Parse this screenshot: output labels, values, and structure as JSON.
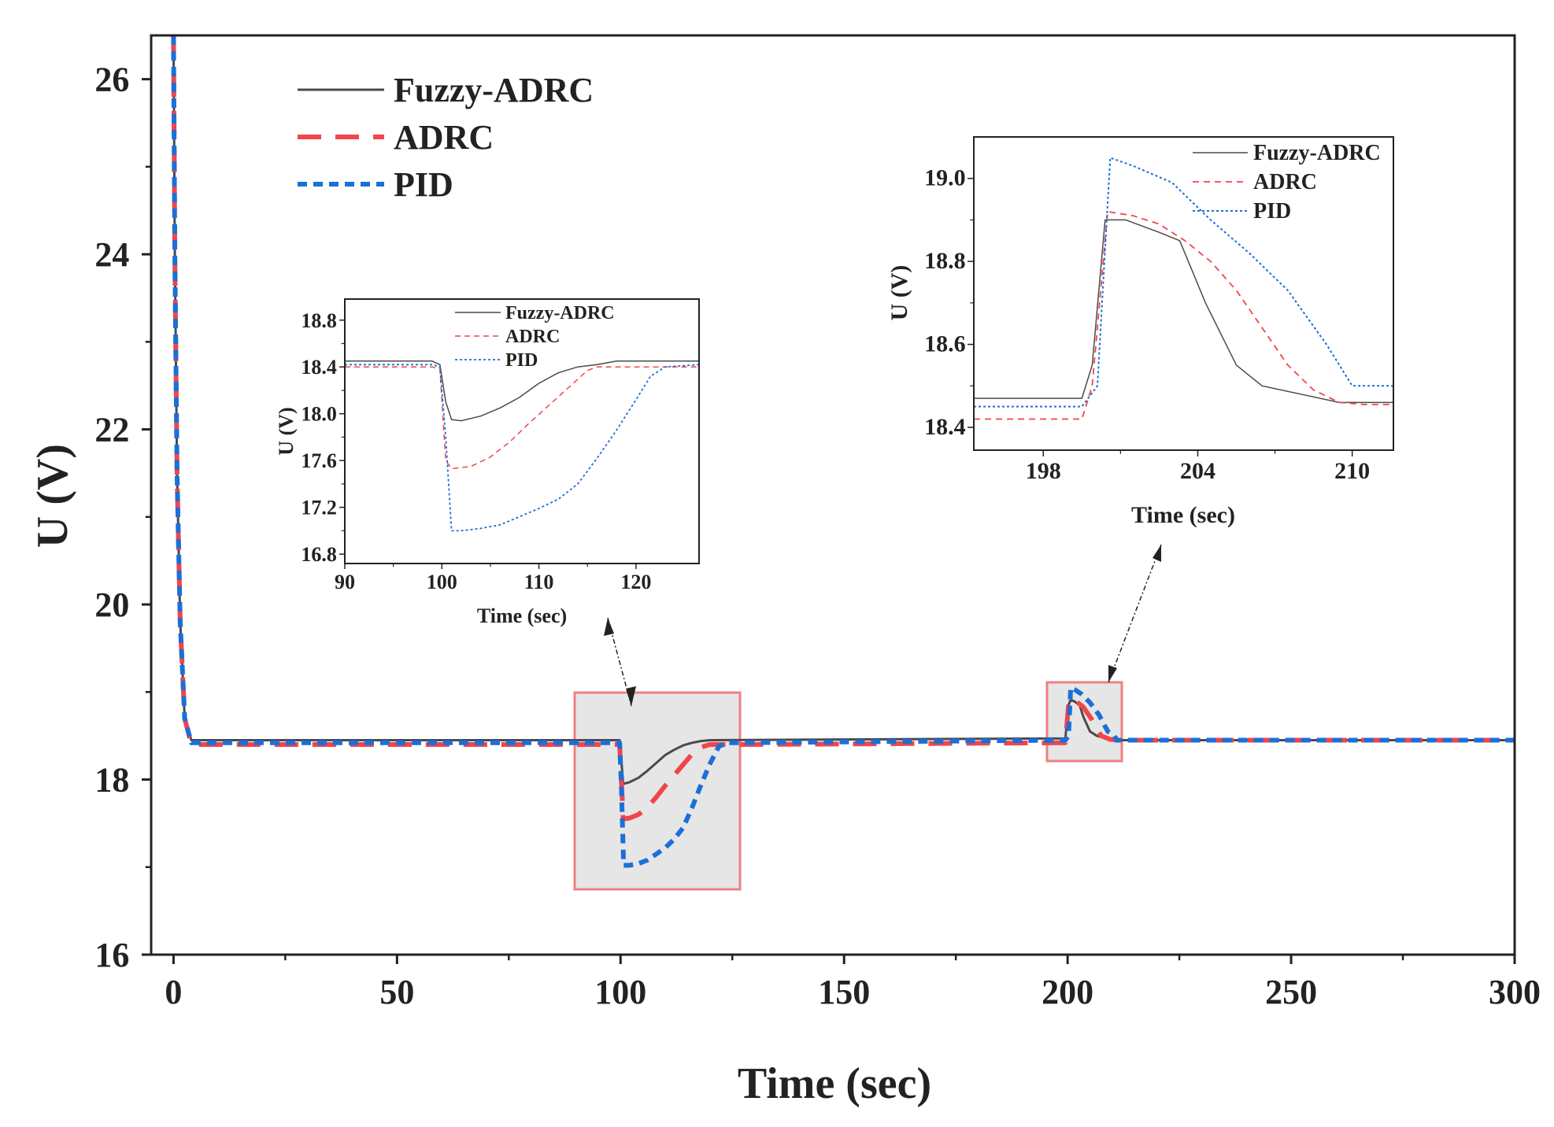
{
  "colors": {
    "fuzzy": "#4a4a4a",
    "adrc": "#f0454a",
    "pid": "#1c6fd8",
    "zoom_box_edge": "#f08080",
    "zoom_box_fill": "#e6e6e6",
    "axis": "#222222"
  },
  "chart_data": [
    {
      "id": "main",
      "type": "line",
      "xlabel": "Time (sec)",
      "ylabel": "U (V)",
      "xlim": [
        -5,
        300
      ],
      "ylim": [
        16,
        26.5
      ],
      "xticks": [
        0,
        50,
        100,
        150,
        200,
        250,
        300
      ],
      "xtick_labels": [
        "0",
        "50",
        "100",
        "150",
        "200",
        "250",
        "300"
      ],
      "yticks": [
        16,
        18,
        20,
        22,
        24,
        26
      ],
      "ytick_labels": [
        "16",
        "18",
        "20",
        "22",
        "24",
        "26"
      ],
      "legend": {
        "position": "top-left",
        "entries": [
          "Fuzzy-ADRC",
          "ADRC",
          "PID"
        ]
      },
      "series": [
        {
          "name": "Fuzzy-ADRC",
          "style": "solid",
          "x": [
            0,
            0.3,
            0.8,
            1.5,
            2.5,
            4,
            99.8,
            100.6,
            102,
            104,
            106,
            108,
            110,
            112,
            114,
            116,
            118,
            120,
            199.5,
            200.2,
            200.6,
            201.3,
            202.7,
            203.5,
            205,
            206.5,
            208,
            209.5,
            210.5,
            212,
            300
          ],
          "y": [
            26.5,
            24,
            21.5,
            19.8,
            18.7,
            18.45,
            18.45,
            17.95,
            17.97,
            18.02,
            18.1,
            18.19,
            18.28,
            18.34,
            18.39,
            18.42,
            18.44,
            18.45,
            18.47,
            18.85,
            18.9,
            18.9,
            18.85,
            18.72,
            18.55,
            18.5,
            18.48,
            18.46,
            18.46,
            18.45,
            18.45
          ]
        },
        {
          "name": "ADRC",
          "style": "dashed",
          "x": [
            0,
            0.3,
            0.8,
            1.5,
            2.5,
            4,
            99.8,
            100.6,
            102,
            104,
            106,
            108,
            110,
            112,
            114,
            116,
            118,
            120,
            122,
            124,
            126,
            199.5,
            200.2,
            200.6,
            201.5,
            203.5,
            205.5,
            207.5,
            209.5,
            211,
            300
          ],
          "y": [
            26.5,
            24,
            21.5,
            19.8,
            18.7,
            18.4,
            18.4,
            17.55,
            17.56,
            17.6,
            17.68,
            17.8,
            17.93,
            18.05,
            18.17,
            18.29,
            18.37,
            18.4,
            18.4,
            18.4,
            18.4,
            18.42,
            18.85,
            18.92,
            18.91,
            18.83,
            18.68,
            18.5,
            18.46,
            18.45,
            18.45
          ]
        },
        {
          "name": "PID",
          "style": "dotted",
          "x": [
            0,
            0.3,
            0.8,
            1.5,
            2.5,
            4,
            99.8,
            100.2,
            100.7,
            102,
            104,
            106,
            108,
            110,
            112,
            114,
            116,
            118,
            120,
            122,
            124,
            126,
            199.5,
            200.2,
            200.7,
            201.5,
            203,
            205,
            207,
            209,
            210.5,
            211,
            300
          ],
          "y": [
            26.5,
            24,
            21.5,
            19.8,
            18.7,
            18.42,
            18.42,
            17.9,
            17.02,
            17.02,
            17.04,
            17.08,
            17.15,
            17.22,
            17.32,
            17.45,
            17.68,
            17.94,
            18.18,
            18.38,
            18.42,
            18.42,
            18.45,
            18.5,
            19.05,
            19.03,
            18.98,
            18.88,
            18.74,
            18.55,
            18.5,
            18.45,
            18.45
          ]
        }
      ]
    },
    {
      "id": "inset1",
      "type": "line",
      "xlabel": "Time (sec)",
      "ylabel": "U (V)",
      "xlim": [
        90,
        126.5
      ],
      "ylim": [
        16.72,
        18.98
      ],
      "xticks": [
        90,
        100,
        110,
        120
      ],
      "xtick_labels": [
        "90",
        "100",
        "110",
        "120"
      ],
      "yticks": [
        16.8,
        17.2,
        17.6,
        18.0,
        18.4,
        18.8
      ],
      "ytick_labels": [
        "16.8",
        "17.2",
        "17.6",
        "18.0",
        "18.4",
        "18.8"
      ],
      "legend": {
        "position": "top-right",
        "entries": [
          "Fuzzy-ADRC",
          "ADRC",
          "PID"
        ]
      },
      "series": [
        {
          "name": "Fuzzy-ADRC",
          "style": "solid",
          "x": [
            90,
            99,
            99.8,
            100.4,
            101,
            102,
            104,
            106,
            108,
            110,
            112,
            114,
            116,
            118,
            126.5
          ],
          "y": [
            18.45,
            18.45,
            18.42,
            18.1,
            17.95,
            17.94,
            17.98,
            18.05,
            18.14,
            18.26,
            18.35,
            18.4,
            18.42,
            18.45,
            18.45
          ]
        },
        {
          "name": "ADRC",
          "style": "dashed",
          "x": [
            90,
            99,
            99.8,
            100.4,
            101,
            103,
            105,
            107,
            109,
            111,
            113,
            115,
            116,
            120,
            126.5
          ],
          "y": [
            18.4,
            18.4,
            18.38,
            17.6,
            17.53,
            17.55,
            17.63,
            17.76,
            17.92,
            18.07,
            18.22,
            18.37,
            18.4,
            18.4,
            18.4
          ]
        },
        {
          "name": "PID",
          "style": "dotted",
          "x": [
            90,
            99,
            99.8,
            100.4,
            101,
            102,
            104,
            106,
            108,
            110,
            112,
            114,
            116,
            118,
            120,
            121.5,
            123,
            126.5
          ],
          "y": [
            18.42,
            18.42,
            18.4,
            17.8,
            17.0,
            17.0,
            17.02,
            17.05,
            17.12,
            17.19,
            17.27,
            17.4,
            17.62,
            17.86,
            18.12,
            18.32,
            18.4,
            18.42
          ]
        }
      ]
    },
    {
      "id": "inset2",
      "type": "line",
      "xlabel": "Time (sec)",
      "ylabel": "U (V)",
      "xlim": [
        195.3,
        211.6
      ],
      "ylim": [
        18.345,
        19.1
      ],
      "xticks": [
        198,
        204,
        210
      ],
      "xtick_labels": [
        "198",
        "204",
        "210"
      ],
      "yticks": [
        18.4,
        18.6,
        18.8,
        19.0
      ],
      "ytick_labels": [
        "18.4",
        "18.6",
        "18.8",
        "19.0"
      ],
      "legend": {
        "position": "top-right",
        "entries": [
          "Fuzzy-ADRC",
          "ADRC",
          "PID"
        ]
      },
      "series": [
        {
          "name": "Fuzzy-ADRC",
          "style": "solid",
          "x": [
            195.3,
            199.5,
            199.9,
            200.4,
            201.2,
            202.5,
            203.3,
            204.3,
            205.5,
            206.5,
            208,
            209.5,
            210.5,
            211.6
          ],
          "y": [
            18.47,
            18.47,
            18.55,
            18.9,
            18.9,
            18.87,
            18.85,
            18.7,
            18.55,
            18.5,
            18.48,
            18.46,
            18.46,
            18.46
          ]
        },
        {
          "name": "ADRC",
          "style": "dashed",
          "x": [
            195.3,
            199.5,
            199.9,
            200.5,
            201.5,
            202.5,
            203.5,
            204.5,
            205.5,
            206.5,
            207.5,
            208.5,
            209.5,
            210.5,
            211.6
          ],
          "y": [
            18.42,
            18.42,
            18.5,
            18.92,
            18.91,
            18.89,
            18.85,
            18.8,
            18.73,
            18.64,
            18.55,
            18.49,
            18.46,
            18.455,
            18.455
          ]
        },
        {
          "name": "PID",
          "style": "dotted",
          "x": [
            195.3,
            199.5,
            200.1,
            200.6,
            201.5,
            203,
            204.5,
            206,
            207.5,
            209,
            210,
            211.6
          ],
          "y": [
            18.45,
            18.45,
            18.5,
            19.05,
            19.03,
            18.99,
            18.9,
            18.82,
            18.73,
            18.6,
            18.5,
            18.5
          ]
        }
      ]
    }
  ]
}
